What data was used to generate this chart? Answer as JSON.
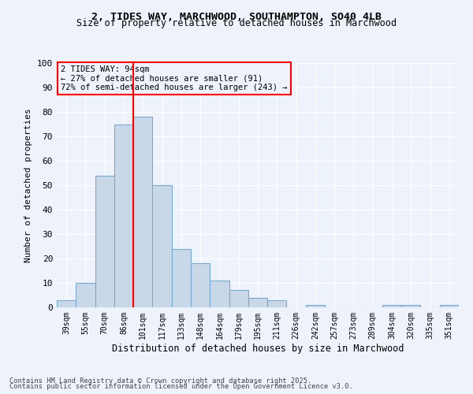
{
  "title1": "2, TIDES WAY, MARCHWOOD, SOUTHAMPTON, SO40 4LB",
  "title2": "Size of property relative to detached houses in Marchwood",
  "xlabel": "Distribution of detached houses by size in Marchwood",
  "ylabel": "Number of detached properties",
  "categories": [
    "39sqm",
    "55sqm",
    "70sqm",
    "86sqm",
    "101sqm",
    "117sqm",
    "133sqm",
    "148sqm",
    "164sqm",
    "179sqm",
    "195sqm",
    "211sqm",
    "226sqm",
    "242sqm",
    "257sqm",
    "273sqm",
    "289sqm",
    "304sqm",
    "320sqm",
    "335sqm",
    "351sqm"
  ],
  "values": [
    3,
    10,
    54,
    75,
    78,
    50,
    24,
    18,
    11,
    7,
    4,
    3,
    0,
    1,
    0,
    0,
    0,
    1,
    1,
    0,
    1
  ],
  "bar_color": "#c8d8e8",
  "bar_edge_color": "#7aaace",
  "vline_x": 3.5,
  "vline_color": "red",
  "annotation_title": "2 TIDES WAY: 94sqm",
  "annotation_line1": "← 27% of detached houses are smaller (91)",
  "annotation_line2": "72% of semi-detached houses are larger (243) →",
  "annotation_box_color": "red",
  "ylim": [
    0,
    100
  ],
  "yticks": [
    0,
    10,
    20,
    30,
    40,
    50,
    60,
    70,
    80,
    90,
    100
  ],
  "footer1": "Contains HM Land Registry data © Crown copyright and database right 2025.",
  "footer2": "Contains public sector information licensed under the Open Government Licence v3.0.",
  "bg_color": "#eef2fa"
}
